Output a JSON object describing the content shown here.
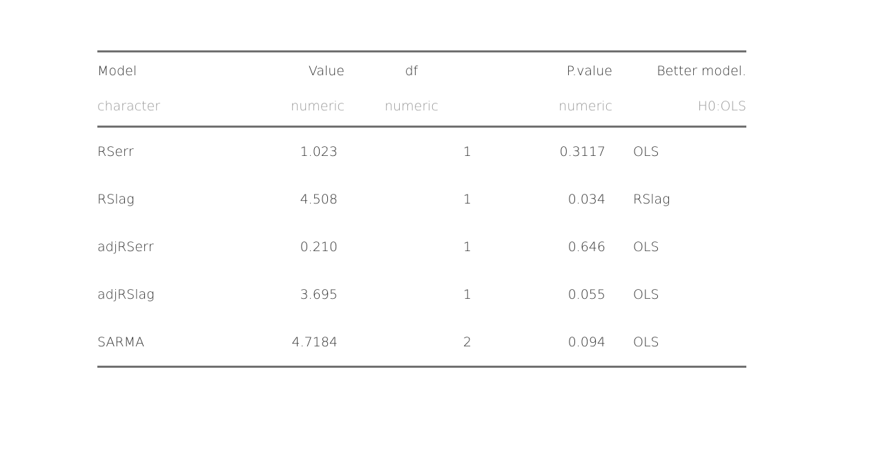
{
  "table": {
    "columns": [
      {
        "name": "Model",
        "type": "character"
      },
      {
        "name": "Value",
        "type": "numeric"
      },
      {
        "name": "df",
        "type": "numeric"
      },
      {
        "name": "P.value",
        "type": "numeric"
      },
      {
        "name": "Better model.",
        "type": "H0:OLS"
      }
    ],
    "rows": [
      {
        "model": "RSerr",
        "value": "1.023",
        "df": "1",
        "p_value": "0.3117",
        "better": "OLS"
      },
      {
        "model": "RSlag",
        "value": "4.508",
        "df": "1",
        "p_value": "0.034",
        "better": "RSlag"
      },
      {
        "model": "adjRSerr",
        "value": "0.210",
        "df": "1",
        "p_value": "0.646",
        "better": "OLS"
      },
      {
        "model": "adjRSlag",
        "value": "3.695",
        "df": "1",
        "p_value": "0.055",
        "better": "OLS"
      },
      {
        "model": "SARMA",
        "value": "4.7184",
        "df": "2",
        "p_value": "0.094",
        "better": "OLS"
      }
    ]
  }
}
